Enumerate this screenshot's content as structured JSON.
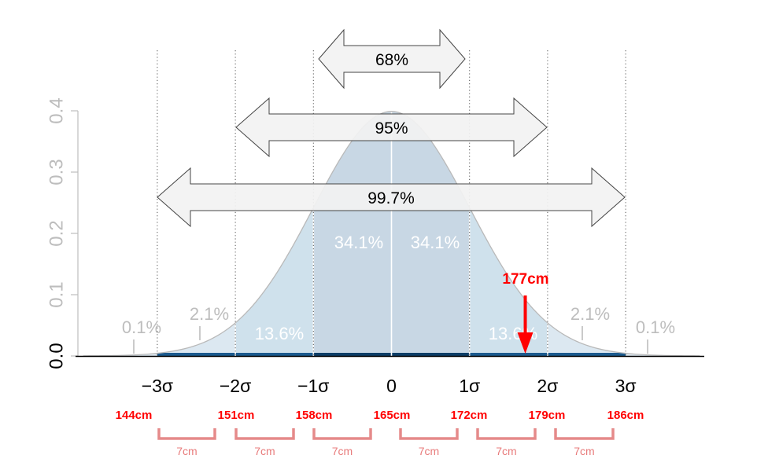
{
  "chart_data": {
    "type": "area",
    "title": "",
    "xlabel": "",
    "ylabel": "",
    "xlim": [
      -4,
      4
    ],
    "ylim": [
      0,
      0.4
    ],
    "grid": false,
    "legend": "none",
    "y_ticks": [
      {
        "value": 0.0,
        "label": "0.0"
      },
      {
        "value": 0.1,
        "label": "0.1"
      },
      {
        "value": 0.2,
        "label": "0.2"
      },
      {
        "value": 0.3,
        "label": "0.3"
      },
      {
        "value": 0.4,
        "label": "0.4"
      }
    ],
    "x_ticks": [
      {
        "value": -3,
        "label": "−3σ"
      },
      {
        "value": -2,
        "label": "−2σ"
      },
      {
        "value": -1,
        "label": "−1σ"
      },
      {
        "value": 0,
        "label": "0"
      },
      {
        "value": 1,
        "label": "1σ"
      },
      {
        "value": 2,
        "label": "2σ"
      },
      {
        "value": 3,
        "label": "3σ"
      }
    ],
    "distribution": {
      "name": "standard normal",
      "mean": 0,
      "sd": 1
    },
    "dotted_lines_sigma": [
      -3,
      -2,
      -1,
      1,
      2,
      3
    ],
    "band_percentages": [
      {
        "from": -4,
        "to": -3,
        "label": "0.1%",
        "value": 0.1
      },
      {
        "from": -3,
        "to": -2,
        "label": "2.1%",
        "value": 2.1
      },
      {
        "from": -2,
        "to": -1,
        "label": "13.6%",
        "value": 13.6
      },
      {
        "from": -1,
        "to": 0,
        "label": "34.1%",
        "value": 34.1
      },
      {
        "from": 0,
        "to": 1,
        "label": "34.1%",
        "value": 34.1
      },
      {
        "from": 1,
        "to": 2,
        "label": "13.6%",
        "value": 13.6
      },
      {
        "from": 2,
        "to": 3,
        "label": "2.1%",
        "value": 2.1
      },
      {
        "from": 3,
        "to": 4,
        "label": "0.1%",
        "value": 0.1
      }
    ],
    "range_arrows": [
      {
        "from": -1,
        "to": 1,
        "label": "68%",
        "y": 0.496
      },
      {
        "from": -2,
        "to": 2,
        "label": "95%",
        "y": 0.374
      },
      {
        "from": -3,
        "to": 3,
        "label": "99.7%",
        "y": 0.262
      }
    ],
    "height_scale": [
      {
        "sigma": -3,
        "label": "144cm"
      },
      {
        "sigma": -2,
        "label": "151cm"
      },
      {
        "sigma": -1,
        "label": "158cm"
      },
      {
        "sigma": 0,
        "label": "165cm"
      },
      {
        "sigma": 1,
        "label": "172cm"
      },
      {
        "sigma": 2,
        "label": "179cm"
      },
      {
        "sigma": 3,
        "label": "186cm"
      }
    ],
    "interval_labels": [
      {
        "from": -3,
        "to": -2,
        "label": "7cm"
      },
      {
        "from": -2,
        "to": -1,
        "label": "7cm"
      },
      {
        "from": -1,
        "to": 0,
        "label": "7cm"
      },
      {
        "from": 0,
        "to": 1,
        "label": "7cm"
      },
      {
        "from": 1,
        "to": 2,
        "label": "7cm"
      },
      {
        "from": 2,
        "to": 3,
        "label": "7cm"
      }
    ],
    "marker": {
      "label": "177cm",
      "sigma": 1.714
    },
    "colors": {
      "outer_fill": "#dce8f1",
      "mid_fill": "#cfe1ec",
      "inner_fill": "#c8d7e4",
      "curve_stroke": "#b9b9b9",
      "arrow_fill": "#f2f2f2",
      "arrow_stroke": "#444444",
      "marker": "#ff0000",
      "height_labels": "#ff0000",
      "brackets": "#e58a8a",
      "interval_text": "#e87b7b",
      "gray_text": "#bdbdbd",
      "white_text": "#ffffff"
    }
  }
}
